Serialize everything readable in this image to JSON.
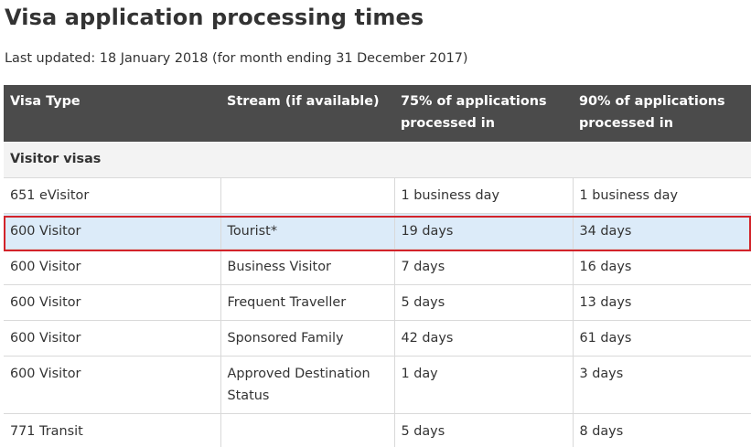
{
  "page": {
    "title": "Visa application processing times",
    "last_updated": "Last updated: 18 January 2018 (for month ending 31 December 2017)"
  },
  "table": {
    "headers": {
      "visa_type": "Visa Type",
      "stream": "Stream (if available)",
      "p75": "75% of applications processed in",
      "p90": "90% of applications processed in"
    },
    "group_label": "Visitor visas",
    "rows": [
      {
        "visa_type": "651 eVisitor",
        "stream": "",
        "p75": "1 business day",
        "p90": "1 business day"
      },
      {
        "visa_type": "600 Visitor",
        "stream": "Tourist*",
        "p75": "19 days",
        "p90": "34 days"
      },
      {
        "visa_type": "600 Visitor",
        "stream": "Business Visitor",
        "p75": "7 days",
        "p90": "16 days"
      },
      {
        "visa_type": "600 Visitor",
        "stream": "Frequent Traveller",
        "p75": "5 days",
        "p90": "13 days"
      },
      {
        "visa_type": "600 Visitor",
        "stream": "Sponsored Family",
        "p75": "42 days",
        "p90": "61 days"
      },
      {
        "visa_type": "600 Visitor",
        "stream": "Approved Destination Status",
        "p75": "1 day",
        "p90": "3 days"
      },
      {
        "visa_type": "771 Transit",
        "stream": "",
        "p75": "5 days",
        "p90": "8 days"
      }
    ]
  },
  "highlight": {
    "color": "#d2232a",
    "row_background": "#dcebf9"
  }
}
